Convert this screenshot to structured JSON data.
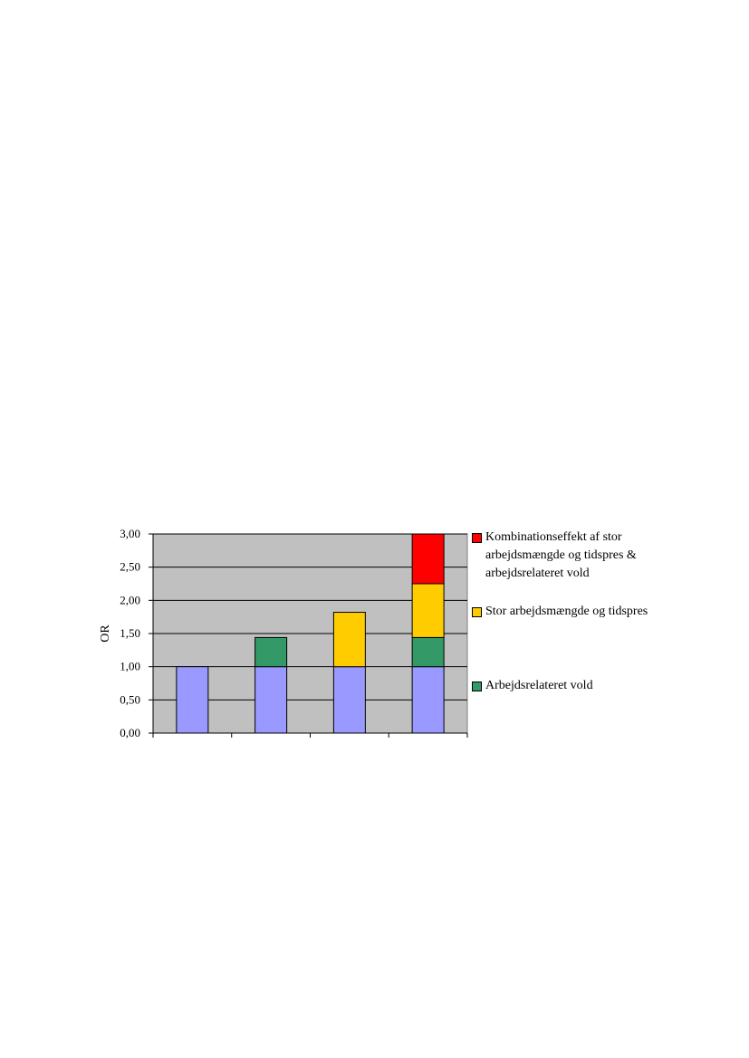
{
  "chart_data": {
    "type": "bar",
    "stacked": true,
    "title": "",
    "xlabel": "",
    "ylabel": "OR",
    "ylim": [
      0,
      3
    ],
    "yticks": [
      "0,00",
      "0,50",
      "1,00",
      "1,50",
      "2,00",
      "2,50",
      "3,00"
    ],
    "ytick_values": [
      0,
      0.5,
      1,
      1.5,
      2,
      2.5,
      3
    ],
    "grid": true,
    "plot_background": "#c0c0c0",
    "legend_position": "right",
    "categories": [
      "",
      "",
      "",
      ""
    ],
    "base": {
      "color": "#9999ff",
      "values": [
        1.0,
        1.0,
        1.0,
        1.0
      ]
    },
    "series": [
      {
        "name": "Arbejdsrelateret vold",
        "color": "#339966",
        "values": [
          0,
          0.44,
          0,
          0.44
        ]
      },
      {
        "name": "Stor arbejdsmængde og tidspres",
        "color": "#ffcc00",
        "values": [
          0,
          0,
          0.82,
          0.81
        ]
      },
      {
        "name": "Kombinationseffekt af stor arbejdsmængde og tidspres & arbejdsrelateret vold",
        "color": "#ff0000",
        "values": [
          0,
          0,
          0,
          0.75
        ]
      }
    ]
  }
}
